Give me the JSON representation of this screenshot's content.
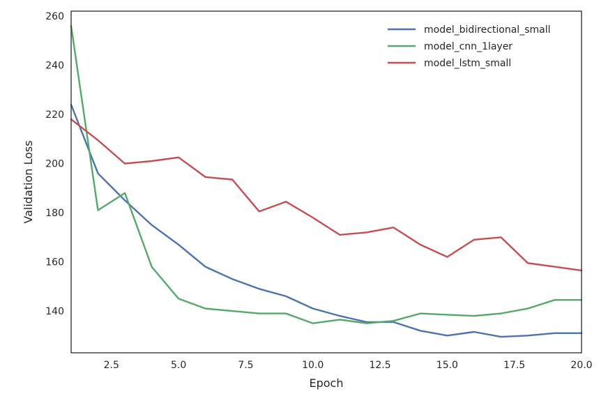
{
  "chart_data": {
    "type": "line",
    "title": "",
    "xlabel": "Epoch",
    "ylabel": "Validation Loss",
    "xlim": [
      1,
      20
    ],
    "ylim": [
      123,
      262
    ],
    "xticks": [
      2.5,
      5.0,
      7.5,
      10.0,
      12.5,
      15.0,
      17.5,
      20.0
    ],
    "xtick_labels": [
      "2.5",
      "5.0",
      "7.5",
      "10.0",
      "12.5",
      "15.0",
      "17.5",
      "20.0"
    ],
    "yticks": [
      140,
      160,
      180,
      200,
      220,
      240,
      260
    ],
    "ytick_labels": [
      "140",
      "160",
      "180",
      "200",
      "220",
      "240",
      "260"
    ],
    "grid": false,
    "legend": "top-right",
    "x": [
      1,
      2,
      3,
      4,
      5,
      6,
      7,
      8,
      9,
      10,
      11,
      12,
      13,
      14,
      15,
      16,
      17,
      18,
      19,
      20
    ],
    "series": [
      {
        "name": "model_bidirectional_small",
        "color": "#4c72b0",
        "values": [
          224,
          196,
          185,
          175,
          167,
          158,
          153,
          149,
          146,
          141,
          138,
          135.5,
          135.5,
          132,
          130,
          131.5,
          129.5,
          130,
          131,
          131
        ]
      },
      {
        "name": "model_cnn_1layer",
        "color": "#55a868",
        "values": [
          256,
          181,
          188,
          158,
          145,
          141,
          140,
          139,
          139,
          135,
          136.5,
          135,
          136,
          139,
          138.5,
          138,
          139,
          141,
          144.5,
          144.5
        ]
      },
      {
        "name": "model_lstm_small",
        "color": "#c44e52",
        "values": [
          218,
          209.5,
          200,
          201,
          202.5,
          194.5,
          193.5,
          180.5,
          184.5,
          178,
          171,
          172,
          174,
          167,
          162,
          169,
          170,
          159.5,
          158,
          156.5
        ]
      }
    ]
  }
}
